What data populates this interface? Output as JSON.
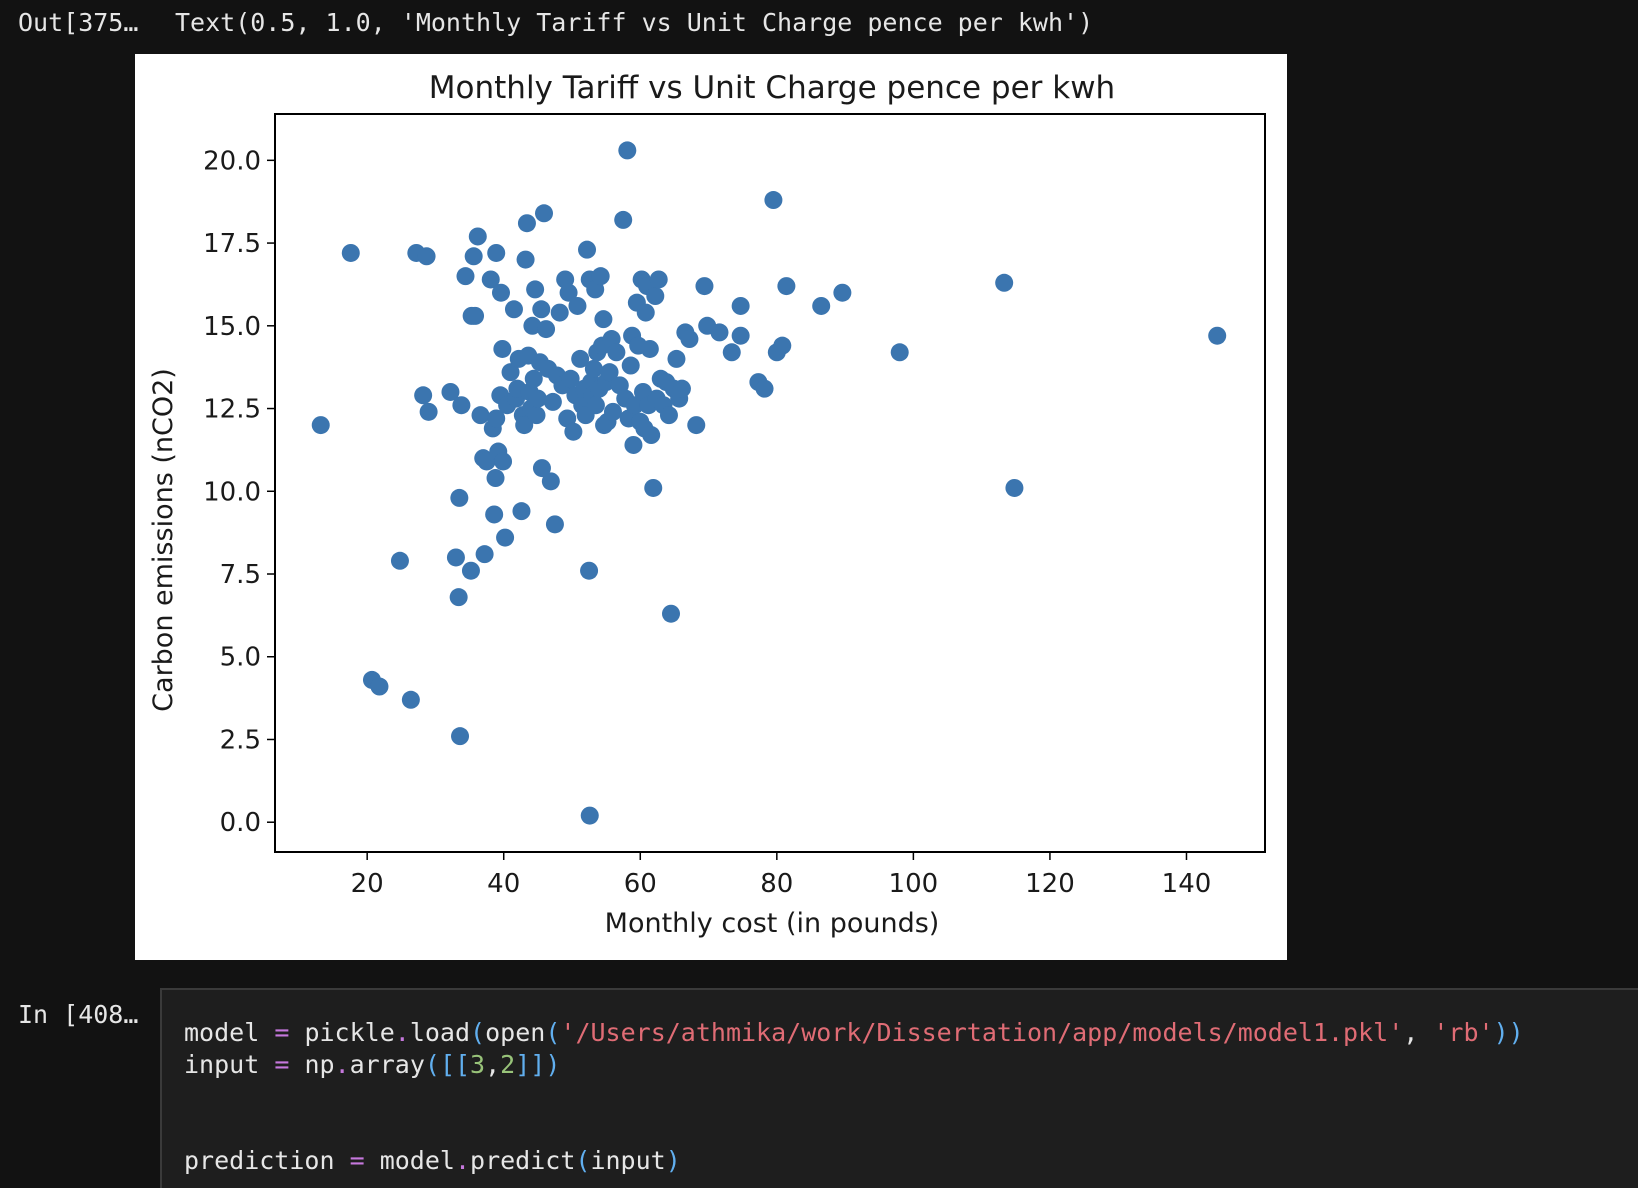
{
  "output_cell": {
    "prompt": "Out[375…",
    "text": "Text(0.5, 1.0, 'Monthly Tariff vs Unit Charge pence per kwh')"
  },
  "input_cell": {
    "prompt": "In [408…",
    "line1": {
      "var": "model",
      "op": "=",
      "obj": "pickle",
      "dot": ".",
      "fn": "load",
      "p1": "(",
      "fn2": "open",
      "p2": "(",
      "path": "'/Users/athmika/work/Dissertation/app/models/model1.pkl'",
      "comma": ", ",
      "mode": "'rb'",
      "p3": "))"
    },
    "line2": {
      "var": "input",
      "op": "=",
      "obj": "np",
      "dot": ".",
      "fn": "array",
      "p1": "([[",
      "n1": "3",
      "comma": ",",
      "n2": "2",
      "p2": "]])"
    },
    "line3": {
      "var": "prediction",
      "op": "=",
      "obj": "model",
      "dot": ".",
      "fn": "predict",
      "p1": "(",
      "arg": "input",
      "p2": ")"
    }
  },
  "colors": {
    "marker": "#3b75af",
    "page_bg": "#121212",
    "code_bg": "#1e1e1e"
  },
  "chart_data": {
    "type": "scatter",
    "title": "Monthly Tariff vs Unit Charge pence per kwh",
    "xlabel": "Monthly cost (in pounds)",
    "ylabel": "Carbon emissions (nCO2)",
    "xlim": [
      6.5,
      151.5
    ],
    "ylim": [
      -0.9,
      21.4
    ],
    "xticks": [
      20,
      40,
      60,
      80,
      100,
      120,
      140
    ],
    "xtick_labels": [
      "20",
      "40",
      "60",
      "80",
      "100",
      "120",
      "140"
    ],
    "yticks": [
      0.0,
      2.5,
      5.0,
      7.5,
      10.0,
      12.5,
      15.0,
      17.5,
      20.0
    ],
    "ytick_labels": [
      "0.0",
      "2.5",
      "5.0",
      "7.5",
      "10.0",
      "12.5",
      "15.0",
      "17.5",
      "20.0"
    ],
    "grid": false,
    "points": [
      [
        13.2,
        12.0
      ],
      [
        17.6,
        17.2
      ],
      [
        20.7,
        4.3
      ],
      [
        21.8,
        4.1
      ],
      [
        24.8,
        7.9
      ],
      [
        26.4,
        3.7
      ],
      [
        27.2,
        17.2
      ],
      [
        28.2,
        12.9
      ],
      [
        28.7,
        17.1
      ],
      [
        29.0,
        12.4
      ],
      [
        32.2,
        13.0
      ],
      [
        33.0,
        8.0
      ],
      [
        33.4,
        6.8
      ],
      [
        33.5,
        9.8
      ],
      [
        33.6,
        2.6
      ],
      [
        33.8,
        12.6
      ],
      [
        34.4,
        16.5
      ],
      [
        35.2,
        7.6
      ],
      [
        35.3,
        15.3
      ],
      [
        35.6,
        17.1
      ],
      [
        35.8,
        15.3
      ],
      [
        36.2,
        17.7
      ],
      [
        36.6,
        12.3
      ],
      [
        37.0,
        11.0
      ],
      [
        37.2,
        8.1
      ],
      [
        37.5,
        10.9
      ],
      [
        38.1,
        16.4
      ],
      [
        38.4,
        11.9
      ],
      [
        38.6,
        9.3
      ],
      [
        38.9,
        12.2
      ],
      [
        38.8,
        10.4
      ],
      [
        38.9,
        17.2
      ],
      [
        39.2,
        11.2
      ],
      [
        39.5,
        12.9
      ],
      [
        39.6,
        16.0
      ],
      [
        39.8,
        14.3
      ],
      [
        39.9,
        10.9
      ],
      [
        40.2,
        8.6
      ],
      [
        40.5,
        12.6
      ],
      [
        41.0,
        13.6
      ],
      [
        41.5,
        15.5
      ],
      [
        41.8,
        12.8
      ],
      [
        42.0,
        13.1
      ],
      [
        42.2,
        14.0
      ],
      [
        42.6,
        9.4
      ],
      [
        42.8,
        12.3
      ],
      [
        43.0,
        12.0
      ],
      [
        43.2,
        17.0
      ],
      [
        43.4,
        18.1
      ],
      [
        43.6,
        14.1
      ],
      [
        43.8,
        13.0
      ],
      [
        44.0,
        12.5
      ],
      [
        44.2,
        15.0
      ],
      [
        44.4,
        13.4
      ],
      [
        44.6,
        16.1
      ],
      [
        44.8,
        12.3
      ],
      [
        45.0,
        12.8
      ],
      [
        45.3,
        13.9
      ],
      [
        45.5,
        15.5
      ],
      [
        45.6,
        10.7
      ],
      [
        45.9,
        18.4
      ],
      [
        46.2,
        14.9
      ],
      [
        46.5,
        13.7
      ],
      [
        46.9,
        10.3
      ],
      [
        47.2,
        12.7
      ],
      [
        47.5,
        9.0
      ],
      [
        47.8,
        13.5
      ],
      [
        48.2,
        15.4
      ],
      [
        48.6,
        13.2
      ],
      [
        49.0,
        16.4
      ],
      [
        49.3,
        12.2
      ],
      [
        49.5,
        16.0
      ],
      [
        49.8,
        13.4
      ],
      [
        50.2,
        11.8
      ],
      [
        50.5,
        12.9
      ],
      [
        50.8,
        15.6
      ],
      [
        51.2,
        14.0
      ],
      [
        51.5,
        12.6
      ],
      [
        51.8,
        13.1
      ],
      [
        52.0,
        12.3
      ],
      [
        52.2,
        17.3
      ],
      [
        52.5,
        7.6
      ],
      [
        52.6,
        0.2
      ],
      [
        52.6,
        16.4
      ],
      [
        52.8,
        13.3
      ],
      [
        53.0,
        12.9
      ],
      [
        53.2,
        13.7
      ],
      [
        53.4,
        16.1
      ],
      [
        53.5,
        12.6
      ],
      [
        53.7,
        14.2
      ],
      [
        54.0,
        13.1
      ],
      [
        54.2,
        16.5
      ],
      [
        54.4,
        14.4
      ],
      [
        54.6,
        15.2
      ],
      [
        54.7,
        12.0
      ],
      [
        55.0,
        13.3
      ],
      [
        55.2,
        12.1
      ],
      [
        55.5,
        13.6
      ],
      [
        55.8,
        14.6
      ],
      [
        56.0,
        12.4
      ],
      [
        56.5,
        14.2
      ],
      [
        57.0,
        13.2
      ],
      [
        57.5,
        18.2
      ],
      [
        57.8,
        12.8
      ],
      [
        58.1,
        20.3
      ],
      [
        58.3,
        12.2
      ],
      [
        58.6,
        13.8
      ],
      [
        58.8,
        14.7
      ],
      [
        59.0,
        11.4
      ],
      [
        59.2,
        12.6
      ],
      [
        59.5,
        15.7
      ],
      [
        59.7,
        14.4
      ],
      [
        60.0,
        12.1
      ],
      [
        60.2,
        16.4
      ],
      [
        60.4,
        13.0
      ],
      [
        60.6,
        11.9
      ],
      [
        60.8,
        15.4
      ],
      [
        61.0,
        16.2
      ],
      [
        61.2,
        12.6
      ],
      [
        61.4,
        14.3
      ],
      [
        61.6,
        11.7
      ],
      [
        61.9,
        10.1
      ],
      [
        62.2,
        15.9
      ],
      [
        62.4,
        12.8
      ],
      [
        62.7,
        16.4
      ],
      [
        63.0,
        13.4
      ],
      [
        63.4,
        12.6
      ],
      [
        63.8,
        13.3
      ],
      [
        64.2,
        12.3
      ],
      [
        64.5,
        6.3
      ],
      [
        64.9,
        13.1
      ],
      [
        65.3,
        14.0
      ],
      [
        65.7,
        12.8
      ],
      [
        66.1,
        13.1
      ],
      [
        66.6,
        14.8
      ],
      [
        67.2,
        14.6
      ],
      [
        68.2,
        12.0
      ],
      [
        69.4,
        16.2
      ],
      [
        69.8,
        15.0
      ],
      [
        71.6,
        14.8
      ],
      [
        73.4,
        14.2
      ],
      [
        74.7,
        15.6
      ],
      [
        74.7,
        14.7
      ],
      [
        77.3,
        13.3
      ],
      [
        78.2,
        13.1
      ],
      [
        79.5,
        18.8
      ],
      [
        80.0,
        14.2
      ],
      [
        80.8,
        14.4
      ],
      [
        81.4,
        16.2
      ],
      [
        86.5,
        15.6
      ],
      [
        89.6,
        16.0
      ],
      [
        98.0,
        14.2
      ],
      [
        113.3,
        16.3
      ],
      [
        114.8,
        10.1
      ],
      [
        144.5,
        14.7
      ]
    ]
  }
}
